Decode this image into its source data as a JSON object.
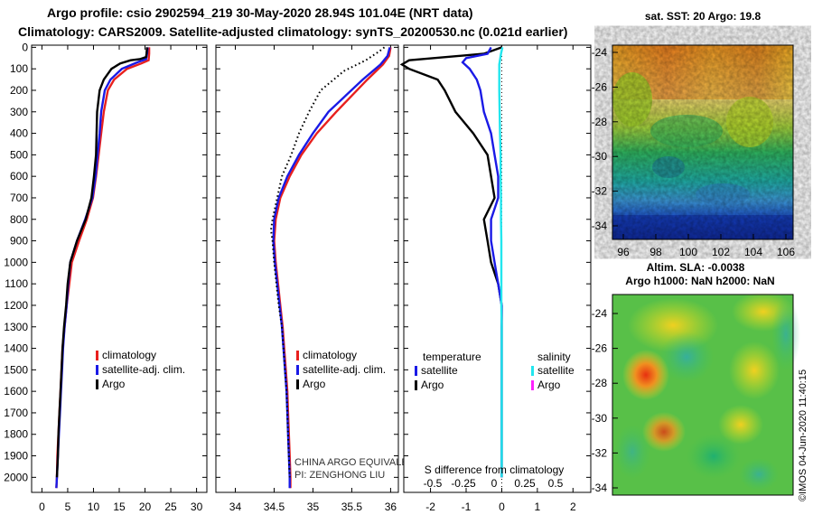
{
  "header": {
    "line1": "Argo profile: csio 2902594_219 30-May-2020 28.94S 101.04E (NRT data)",
    "line2": "Climatology: CARS2009. Satellite-adjusted climatology: synTS_20200530.nc (0.021d earlier)"
  },
  "stamp": "©IMOS 04-Jun-2020 11:40:15",
  "colors": {
    "climatology": "#e8201e",
    "satellite": "#1a1ae6",
    "argo": "#000000",
    "sat_salinity": "#22e6ee",
    "argo_salinity": "#ff22ff"
  },
  "chart_data": [
    {
      "type": "line",
      "name": "temperature-profile",
      "xlim": [
        -2,
        32
      ],
      "ylim": [
        2070,
        -10
      ],
      "x_ticks": [
        0,
        5,
        10,
        15,
        20,
        25,
        30
      ],
      "y_ticks": [
        0,
        100,
        200,
        300,
        400,
        500,
        600,
        700,
        800,
        900,
        1000,
        1100,
        1200,
        1300,
        1400,
        1500,
        1600,
        1700,
        1800,
        1900,
        2000
      ],
      "legend": [
        "climatology",
        "satellite-adj. clim.",
        "Argo"
      ],
      "series": [
        {
          "name": "climatology",
          "color": "#e8201e",
          "points": [
            [
              20.8,
              0
            ],
            [
              20.8,
              30
            ],
            [
              20.7,
              60
            ],
            [
              19.3,
              75
            ],
            [
              16.5,
              100
            ],
            [
              14,
              150
            ],
            [
              12.8,
              200
            ],
            [
              12,
              300
            ],
            [
              11.5,
              400
            ],
            [
              11,
              500
            ],
            [
              10.5,
              600
            ],
            [
              9.9,
              700
            ],
            [
              8.7,
              800
            ],
            [
              7.2,
              900
            ],
            [
              5.8,
              1000
            ],
            [
              5.3,
              1100
            ],
            [
              4.8,
              1200
            ],
            [
              4.4,
              1300
            ],
            [
              4,
              1400
            ],
            [
              3.8,
              1500
            ],
            [
              3.6,
              1600
            ],
            [
              3.4,
              1700
            ],
            [
              3.2,
              1800
            ],
            [
              3,
              1900
            ],
            [
              2.9,
              2000
            ],
            [
              2.8,
              2050
            ]
          ]
        },
        {
          "name": "satellite-adj. clim.",
          "color": "#1a1ae6",
          "points": [
            [
              20.5,
              0
            ],
            [
              20.4,
              30
            ],
            [
              20.2,
              55
            ],
            [
              18.5,
              70
            ],
            [
              15.5,
              100
            ],
            [
              13.3,
              150
            ],
            [
              12.2,
              200
            ],
            [
              11.5,
              300
            ],
            [
              11.2,
              400
            ],
            [
              10.8,
              500
            ],
            [
              10.4,
              600
            ],
            [
              9.8,
              700
            ],
            [
              8.4,
              800
            ],
            [
              6.8,
              900
            ],
            [
              5.5,
              1000
            ],
            [
              5.1,
              1100
            ],
            [
              4.8,
              1200
            ],
            [
              4.4,
              1300
            ],
            [
              4.1,
              1400
            ],
            [
              3.9,
              1500
            ],
            [
              3.7,
              1600
            ],
            [
              3.5,
              1700
            ],
            [
              3.3,
              1800
            ],
            [
              3.1,
              1900
            ],
            [
              2.9,
              2000
            ],
            [
              2.8,
              2050
            ]
          ]
        },
        {
          "name": "Argo",
          "color": "#000000",
          "points": [
            [
              20.4,
              0
            ],
            [
              20.3,
              30
            ],
            [
              20.2,
              45
            ],
            [
              19,
              55
            ],
            [
              17.2,
              60
            ],
            [
              15.2,
              75
            ],
            [
              13.5,
              100
            ],
            [
              12,
              150
            ],
            [
              11.2,
              200
            ],
            [
              10.7,
              300
            ],
            [
              10.6,
              400
            ],
            [
              10.5,
              500
            ],
            [
              10.1,
              600
            ],
            [
              9.6,
              700
            ],
            [
              8.5,
              800
            ],
            [
              6.8,
              900
            ],
            [
              5.5,
              1000
            ],
            [
              5,
              1100
            ],
            [
              4.7,
              1200
            ],
            [
              4.3,
              1300
            ],
            [
              4,
              1400
            ],
            [
              3.8,
              1500
            ],
            [
              3.6,
              1600
            ],
            [
              3.4,
              1700
            ],
            [
              3.2,
              1800
            ],
            [
              3.1,
              1900
            ],
            [
              2.9,
              2000
            ]
          ]
        }
      ]
    },
    {
      "type": "line",
      "name": "salinity-profile",
      "xlim": [
        33.75,
        36.1
      ],
      "ylim": [
        2070,
        -10
      ],
      "x_ticks": [
        34,
        34.5,
        35,
        35.5,
        36
      ],
      "legend": [
        "climatology",
        "satellite-adj. clim.",
        "Argo"
      ],
      "annotation": [
        "CHINA ARGO EQUIVALENT",
        "PI: ZENGHONG LIU"
      ],
      "series": [
        {
          "name": "climatology",
          "color": "#e8201e",
          "points": [
            [
              36,
              0
            ],
            [
              35.98,
              40
            ],
            [
              35.9,
              80
            ],
            [
              35.7,
              150
            ],
            [
              35.3,
              300
            ],
            [
              35.05,
              400
            ],
            [
              34.85,
              500
            ],
            [
              34.7,
              600
            ],
            [
              34.58,
              700
            ],
            [
              34.52,
              800
            ],
            [
              34.5,
              900
            ],
            [
              34.52,
              1000
            ],
            [
              34.55,
              1100
            ],
            [
              34.58,
              1200
            ],
            [
              34.61,
              1300
            ],
            [
              34.63,
              1400
            ],
            [
              34.65,
              1500
            ],
            [
              34.67,
              1600
            ],
            [
              34.68,
              1700
            ],
            [
              34.69,
              1800
            ],
            [
              34.7,
              1900
            ],
            [
              34.71,
              2000
            ],
            [
              34.71,
              2050
            ]
          ]
        },
        {
          "name": "satellite-adj. clim.",
          "color": "#1a1ae6",
          "points": [
            [
              35.99,
              0
            ],
            [
              35.96,
              40
            ],
            [
              35.87,
              80
            ],
            [
              35.64,
              150
            ],
            [
              35.2,
              300
            ],
            [
              35,
              400
            ],
            [
              34.82,
              500
            ],
            [
              34.67,
              600
            ],
            [
              34.56,
              700
            ],
            [
              34.5,
              800
            ],
            [
              34.49,
              900
            ],
            [
              34.51,
              1000
            ],
            [
              34.54,
              1100
            ],
            [
              34.57,
              1200
            ],
            [
              34.6,
              1300
            ],
            [
              34.62,
              1400
            ],
            [
              34.64,
              1500
            ],
            [
              34.66,
              1600
            ],
            [
              34.67,
              1700
            ],
            [
              34.68,
              1800
            ],
            [
              34.69,
              1900
            ],
            [
              34.7,
              2000
            ],
            [
              34.7,
              2050
            ]
          ]
        },
        {
          "name": "Argo",
          "color": "#000000",
          "style": "dotted",
          "points": [
            [
              35.92,
              0
            ],
            [
              35.85,
              20
            ],
            [
              35.68,
              60
            ],
            [
              35.4,
              110
            ],
            [
              35.1,
              200
            ],
            [
              34.95,
              300
            ],
            [
              34.82,
              400
            ],
            [
              34.72,
              500
            ],
            [
              34.6,
              600
            ],
            [
              34.54,
              700
            ],
            [
              34.48,
              800
            ],
            [
              34.46,
              850
            ],
            [
              34.48,
              900
            ],
            [
              34.5,
              1000
            ],
            [
              34.53,
              1100
            ],
            [
              34.56,
              1200
            ],
            [
              34.6,
              1300
            ],
            [
              34.62,
              1400
            ],
            [
              34.64,
              1500
            ],
            [
              34.66,
              1600
            ],
            [
              34.67,
              1700
            ],
            [
              34.68,
              1800
            ],
            [
              34.69,
              1900
            ],
            [
              34.7,
              2000
            ]
          ]
        }
      ]
    },
    {
      "type": "line",
      "name": "difference-from-climatology",
      "xlim": [
        -2.75,
        2.5
      ],
      "ylim": [
        2070,
        -10
      ],
      "x_ticks": [
        -2,
        -1,
        0,
        1,
        2
      ],
      "x2_ticks": [
        -0.5,
        -0.25,
        0,
        0.25,
        0.5
      ],
      "x2_label": "S difference from climatology",
      "legend_titles": [
        "temperature",
        "salinity"
      ],
      "legend": [
        "satellite",
        "Argo",
        "satellite",
        "Argo"
      ],
      "series": [
        {
          "name": "temperature Argo",
          "color": "#000000",
          "points": [
            [
              0,
              0
            ],
            [
              -0.5,
              30
            ],
            [
              -2.6,
              60
            ],
            [
              -2.8,
              80
            ],
            [
              -2.6,
              100
            ],
            [
              -1.8,
              150
            ],
            [
              -1.6,
              200
            ],
            [
              -1.3,
              300
            ],
            [
              -0.8,
              400
            ],
            [
              -0.4,
              500
            ],
            [
              -0.3,
              600
            ],
            [
              -0.2,
              700
            ],
            [
              -0.5,
              800
            ],
            [
              -0.4,
              900
            ],
            [
              -0.3,
              1000
            ],
            [
              -0.1,
              1100
            ],
            [
              0,
              1200
            ],
            [
              0,
              1300
            ],
            [
              0,
              1500
            ],
            [
              0,
              2000
            ]
          ]
        },
        {
          "name": "temperature satellite",
          "color": "#1a1ae6",
          "points": [
            [
              -0.3,
              0
            ],
            [
              -0.4,
              30
            ],
            [
              -1,
              50
            ],
            [
              -1.1,
              70
            ],
            [
              -0.9,
              100
            ],
            [
              -0.7,
              150
            ],
            [
              -0.6,
              200
            ],
            [
              -0.5,
              300
            ],
            [
              -0.3,
              400
            ],
            [
              -0.2,
              500
            ],
            [
              -0.1,
              600
            ],
            [
              -0.1,
              700
            ],
            [
              -0.3,
              800
            ],
            [
              -0.3,
              900
            ],
            [
              -0.2,
              1000
            ],
            [
              -0.1,
              1100
            ],
            [
              0,
              1200
            ],
            [
              0,
              1300
            ],
            [
              0,
              1500
            ],
            [
              0,
              2000
            ]
          ]
        },
        {
          "name": "salinity satellite",
          "color": "#22e6ee",
          "points": [
            [
              0.02,
              0
            ],
            [
              -0.02,
              30
            ],
            [
              -0.07,
              80
            ],
            [
              -0.07,
              150
            ],
            [
              -0.07,
              200
            ],
            [
              -0.06,
              300
            ],
            [
              -0.05,
              400
            ],
            [
              -0.03,
              500
            ],
            [
              -0.03,
              600
            ],
            [
              -0.02,
              700
            ],
            [
              -0.02,
              800
            ],
            [
              -0.01,
              900
            ],
            [
              -0.01,
              1000
            ],
            [
              -0.01,
              1100
            ],
            [
              -0.01,
              1200
            ],
            [
              0,
              1300
            ],
            [
              0,
              1500
            ],
            [
              0,
              2000
            ]
          ]
        }
      ]
    },
    {
      "type": "heatmap",
      "name": "satellite-sst-map",
      "title": "sat. SST: 20 Argo: 19.8",
      "x_ticks": [
        96,
        98,
        100,
        102,
        104,
        106
      ],
      "y_ticks": [
        -24,
        -26,
        -28,
        -30,
        -32,
        -34
      ]
    },
    {
      "type": "heatmap",
      "name": "altimetry-sla-map",
      "title": [
        "Altim. SLA: -0.0038",
        "Argo h1000: NaN h2000: NaN"
      ],
      "y_ticks": [
        -24,
        -26,
        -28,
        -30,
        -32,
        -34
      ]
    }
  ]
}
